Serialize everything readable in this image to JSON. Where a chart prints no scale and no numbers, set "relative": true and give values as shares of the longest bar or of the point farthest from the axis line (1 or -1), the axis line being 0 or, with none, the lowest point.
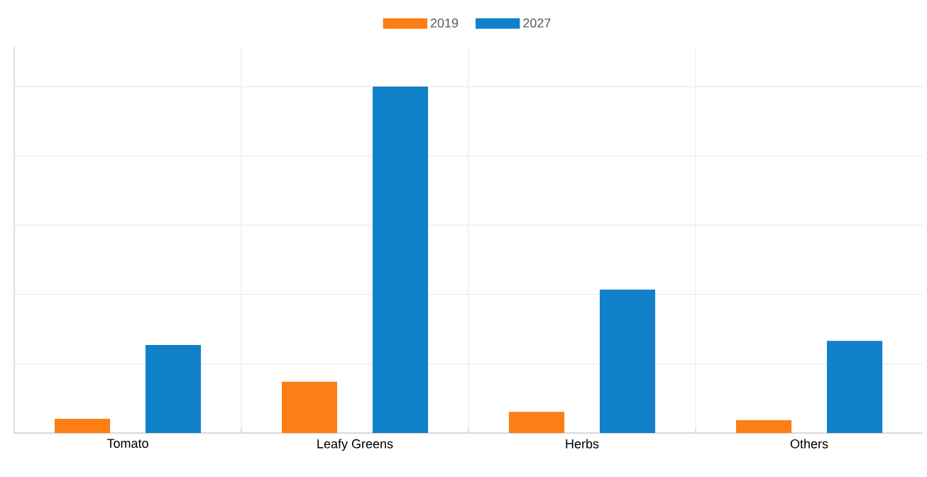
{
  "chart_data": {
    "type": "bar",
    "relative": true,
    "categories": [
      "Tomato",
      "Leafy Greens",
      "Herbs",
      "Others"
    ],
    "series": [
      {
        "name": "2019",
        "color": "#fd7e14",
        "values": [
          0.041,
          0.148,
          0.061,
          0.037
        ]
      },
      {
        "name": "2027",
        "color": "#1081c8",
        "values": [
          0.254,
          1,
          0.414,
          0.266
        ]
      }
    ],
    "grid": true,
    "legend": "top"
  }
}
